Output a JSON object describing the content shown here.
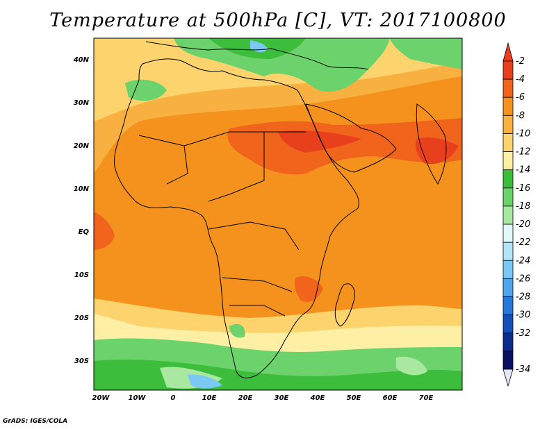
{
  "title": "Temperature at 500hPa [C], VT: 2017100800",
  "credit": "GrADS: IGES/COLA",
  "axes": {
    "lat_labels": [
      "40N",
      "30N",
      "20N",
      "10N",
      "EQ",
      "10S",
      "20S",
      "30S"
    ],
    "lon_labels": [
      "20W",
      "10W",
      "0",
      "10E",
      "20E",
      "30E",
      "40E",
      "50E",
      "60E",
      "70E"
    ]
  },
  "colorbar": {
    "labels": [
      "-2",
      "-4",
      "-6",
      "-8",
      "-10",
      "-12",
      "-14",
      "-16",
      "-18",
      "-20",
      "-22",
      "-24",
      "-26",
      "-28",
      "-30",
      "-32",
      "-34"
    ],
    "colors": [
      "#e8401c",
      "#f0641c",
      "#f5921e",
      "#f8b040",
      "#fcd36c",
      "#fdf0a4",
      "#3cbe3c",
      "#6cd26c",
      "#a8e8a0",
      "#e0fafa",
      "#b4e4f8",
      "#7cc8f4",
      "#50a4ec",
      "#2878dc",
      "#1450b8",
      "#0c2c8c",
      "#0a1060"
    ]
  }
}
